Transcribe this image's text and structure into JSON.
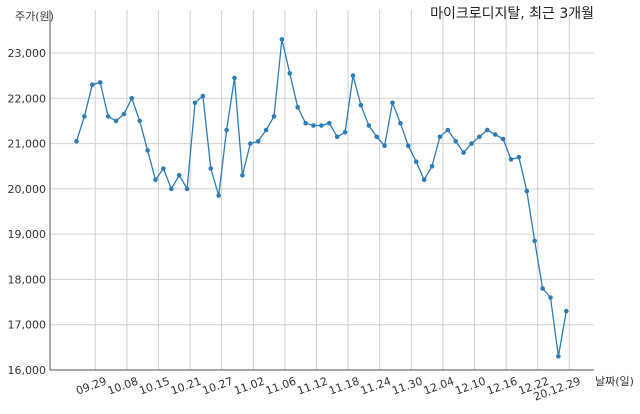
{
  "chart_data": {
    "type": "line",
    "title": "마이크로디지탈, 최근 3개월",
    "ylabel": "주가(원)",
    "xlabel": "날짜(일)",
    "ylim": [
      16000,
      23500
    ],
    "y_ticks": [
      "16,000",
      "17,000",
      "18,000",
      "19,000",
      "20,000",
      "21,000",
      "22,000",
      "23,000"
    ],
    "y_tick_values": [
      16000,
      17000,
      18000,
      19000,
      20000,
      21000,
      22000,
      23000
    ],
    "x_tick_labels": [
      "09.29",
      "10.08",
      "10.15",
      "10.21",
      "10.27",
      "11.02",
      "11.06",
      "11.12",
      "11.18",
      "11.24",
      "11.30",
      "12.04",
      "12.10",
      "12.16",
      "12.22",
      "20.12.29"
    ],
    "x_tick_indices": [
      2,
      6,
      10,
      14,
      18,
      22,
      26,
      30,
      34,
      38,
      42,
      46,
      50,
      54,
      58,
      62
    ],
    "grid": true,
    "series_color": "#2e7cb3",
    "series": [
      {
        "values": [
          21050,
          21600,
          22300,
          22350,
          21600,
          21500,
          21650,
          22000,
          21500,
          20850,
          20200,
          20450,
          20000,
          20300,
          20000,
          21900,
          22050,
          20450,
          19850,
          21300,
          22450,
          20300,
          21000,
          21050,
          21300,
          21600,
          23300,
          22550,
          21800,
          21450,
          21400,
          21400,
          21450,
          21150,
          21250,
          22500,
          21850,
          21400,
          21150,
          20950,
          21900,
          21450,
          20950,
          20600,
          20200,
          20500,
          21150,
          21300,
          21050,
          20800,
          21000,
          21150,
          21300,
          21200,
          21100,
          20650,
          20700,
          19950,
          18850,
          17800,
          17600,
          16300,
          17300
        ]
      }
    ]
  }
}
